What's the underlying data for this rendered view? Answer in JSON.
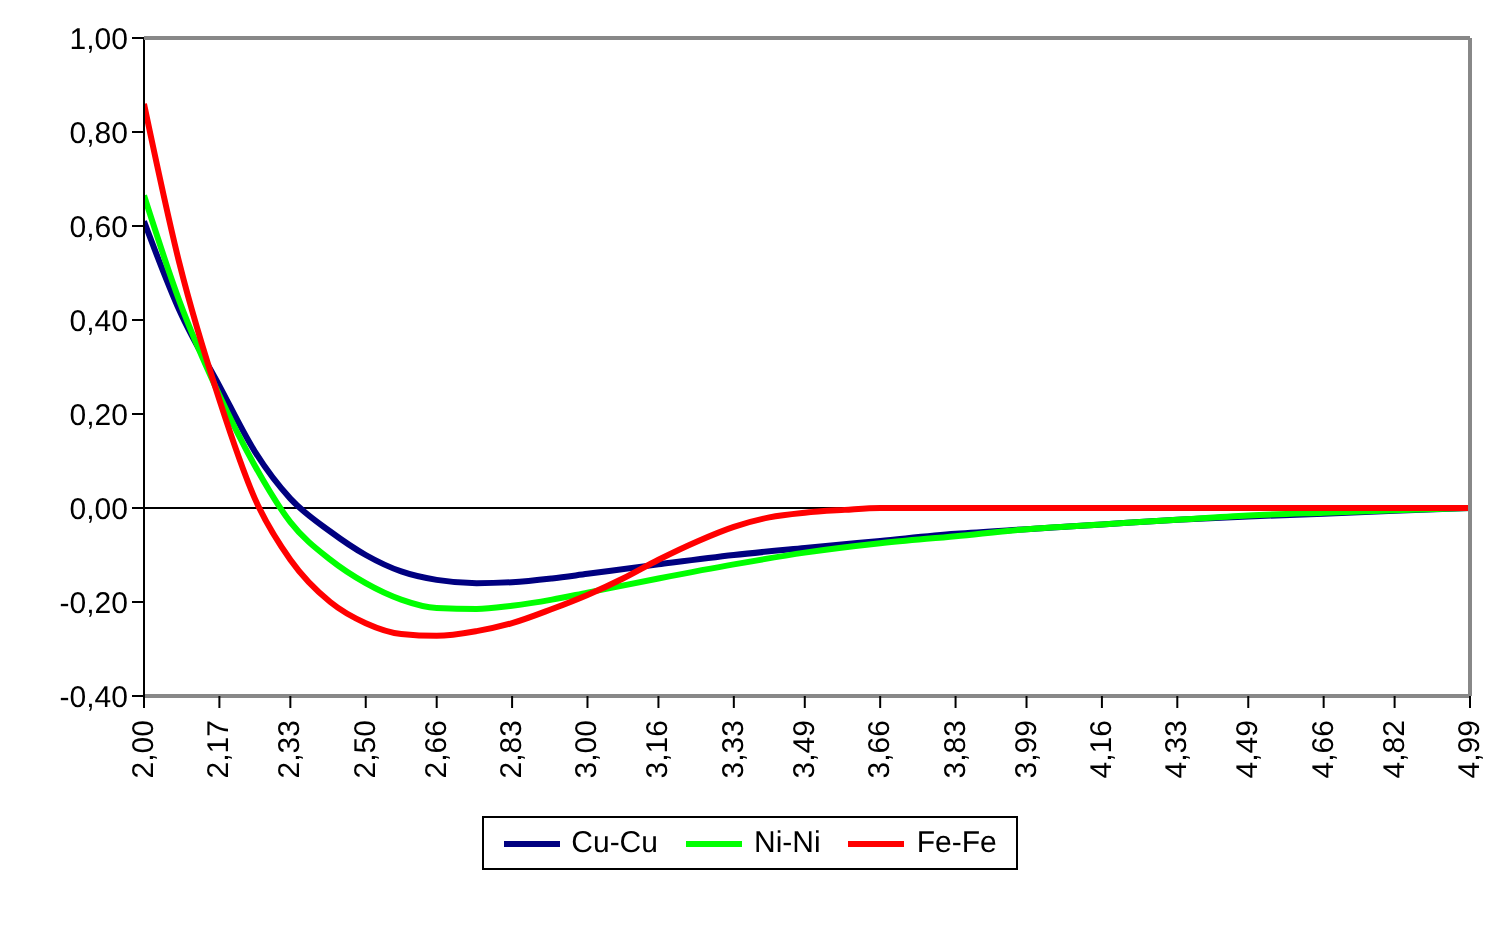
{
  "chart_data": {
    "type": "line",
    "xlim": [
      2.0,
      4.99
    ],
    "xticks": [
      {
        "value": 2.0,
        "label": "2,00"
      },
      {
        "value": 2.17,
        "label": "2,17"
      },
      {
        "value": 2.33,
        "label": "2,33"
      },
      {
        "value": 2.5,
        "label": "2,50"
      },
      {
        "value": 2.66,
        "label": "2,66"
      },
      {
        "value": 2.83,
        "label": "2,83"
      },
      {
        "value": 3.0,
        "label": "3,00"
      },
      {
        "value": 3.16,
        "label": "3,16"
      },
      {
        "value": 3.33,
        "label": "3,33"
      },
      {
        "value": 3.49,
        "label": "3,49"
      },
      {
        "value": 3.66,
        "label": "3,66"
      },
      {
        "value": 3.83,
        "label": "3,83"
      },
      {
        "value": 3.99,
        "label": "3,99"
      },
      {
        "value": 4.16,
        "label": "4,16"
      },
      {
        "value": 4.33,
        "label": "4,33"
      },
      {
        "value": 4.49,
        "label": "4,49"
      },
      {
        "value": 4.66,
        "label": "4,66"
      },
      {
        "value": 4.82,
        "label": "4,82"
      },
      {
        "value": 4.99,
        "label": "4,99"
      }
    ],
    "ylim": [
      -0.4,
      1.0
    ],
    "yticks": [
      {
        "value": -0.4,
        "label": "-0,40"
      },
      {
        "value": -0.2,
        "label": "-0,20"
      },
      {
        "value": 0,
        "label": "0,00"
      },
      {
        "value": 0.2,
        "label": "0,20"
      },
      {
        "value": 0.4,
        "label": "0,40"
      },
      {
        "value": 0.6,
        "label": "0,60"
      },
      {
        "value": 0.8,
        "label": "0,80"
      },
      {
        "value": 1.0,
        "label": "1,00"
      }
    ],
    "ref_lines": [
      {
        "axis": "y",
        "value": 0,
        "color": "#000000"
      }
    ],
    "grid": false,
    "legend": "bottom",
    "marker": "none",
    "line_style": "solid",
    "series": [
      {
        "name": "Cu-Cu",
        "color": "#000080",
        "x": [
          2.0,
          2.08,
          2.17,
          2.25,
          2.33,
          2.42,
          2.5,
          2.58,
          2.66,
          2.75,
          2.83,
          2.92,
          3.0,
          3.16,
          3.33,
          3.49,
          3.66,
          3.83,
          3.99,
          4.16,
          4.33,
          4.49,
          4.66,
          4.82,
          4.99
        ],
        "values": [
          0.61,
          0.42,
          0.26,
          0.12,
          0.02,
          -0.05,
          -0.1,
          -0.135,
          -0.153,
          -0.16,
          -0.158,
          -0.15,
          -0.14,
          -0.12,
          -0.1,
          -0.085,
          -0.07,
          -0.055,
          -0.045,
          -0.035,
          -0.025,
          -0.018,
          -0.012,
          -0.006,
          0
        ]
      },
      {
        "name": "Ni-Ni",
        "color": "#00ff00",
        "x": [
          2.0,
          2.08,
          2.17,
          2.25,
          2.33,
          2.42,
          2.5,
          2.58,
          2.66,
          2.75,
          2.83,
          2.92,
          3.0,
          3.16,
          3.33,
          3.49,
          3.66,
          3.83,
          3.99,
          4.16,
          4.33,
          4.49,
          4.66,
          4.82,
          4.99
        ],
        "values": [
          0.665,
          0.44,
          0.24,
          0.09,
          -0.03,
          -0.11,
          -0.16,
          -0.195,
          -0.213,
          -0.215,
          -0.208,
          -0.195,
          -0.18,
          -0.15,
          -0.12,
          -0.095,
          -0.075,
          -0.06,
          -0.045,
          -0.035,
          -0.025,
          -0.016,
          -0.01,
          -0.005,
          0
        ]
      },
      {
        "name": "Fe-Fe",
        "color": "#ff0000",
        "x": [
          2.0,
          2.08,
          2.17,
          2.25,
          2.33,
          2.42,
          2.5,
          2.58,
          2.66,
          2.75,
          2.83,
          2.92,
          3.0,
          3.08,
          3.16,
          3.25,
          3.33,
          3.41,
          3.49,
          3.58,
          3.66,
          3.83,
          3.99,
          4.16,
          4.33,
          4.49,
          4.66,
          4.82,
          4.99
        ],
        "values": [
          0.86,
          0.52,
          0.23,
          0.02,
          -0.11,
          -0.2,
          -0.245,
          -0.268,
          -0.272,
          -0.262,
          -0.245,
          -0.215,
          -0.185,
          -0.15,
          -0.11,
          -0.07,
          -0.04,
          -0.02,
          -0.01,
          -0.004,
          0,
          0,
          0,
          0,
          0,
          0,
          0,
          0,
          0
        ]
      }
    ]
  }
}
